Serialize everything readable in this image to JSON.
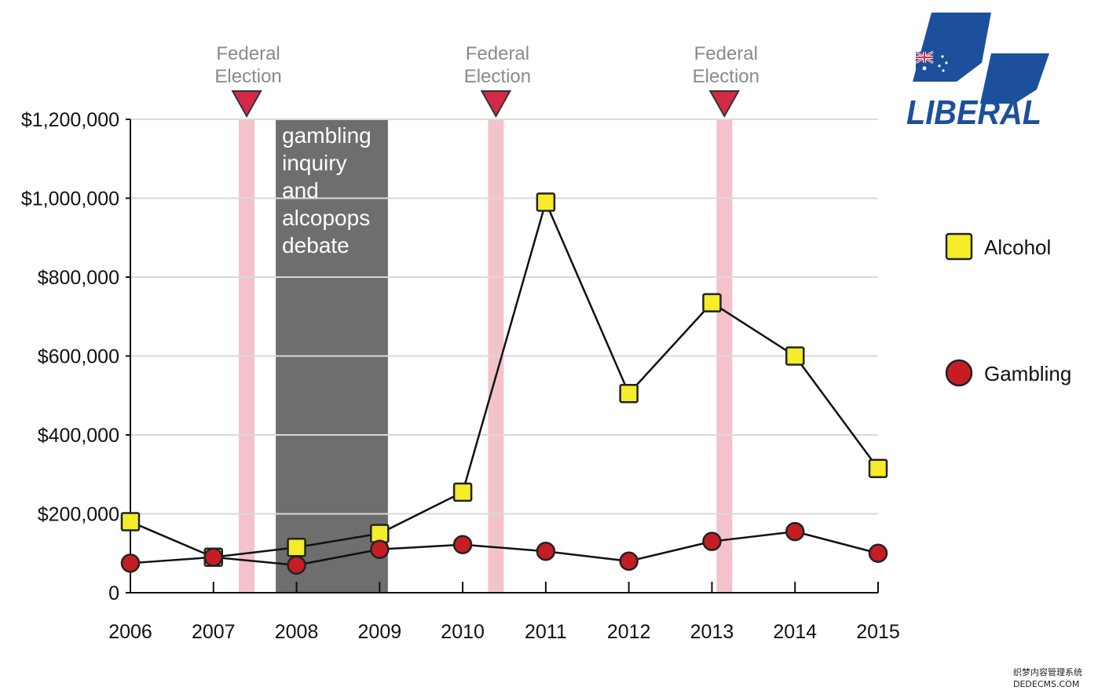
{
  "chart_data": {
    "type": "line",
    "categories": [
      "2006",
      "2007",
      "2008",
      "2009",
      "2010",
      "2011",
      "2012",
      "2013",
      "2014",
      "2015"
    ],
    "ylim": [
      0,
      1200000
    ],
    "y_ticks": [
      {
        "value": 0,
        "label": "0"
      },
      {
        "value": 200000,
        "label": "$200,000"
      },
      {
        "value": 400000,
        "label": "$400,000"
      },
      {
        "value": 600000,
        "label": "$600,000"
      },
      {
        "value": 800000,
        "label": "$800,000"
      },
      {
        "value": 1000000,
        "label": "$1,000,000"
      },
      {
        "value": 1200000,
        "label": "$1,200,000"
      }
    ],
    "grid": true,
    "legend_position": "right",
    "series": [
      {
        "name": "Alcohol",
        "marker": "square",
        "color": "#f5ec2a",
        "values": [
          180000,
          90000,
          115000,
          150000,
          255000,
          990000,
          505000,
          735000,
          600000,
          315000
        ]
      },
      {
        "name": "Gambling",
        "marker": "circle",
        "color": "#c41e24",
        "values": [
          75000,
          90000,
          70000,
          110000,
          122000,
          105000,
          80000,
          130000,
          155000,
          100000
        ]
      }
    ],
    "events": [
      {
        "label_lines": [
          "Federal",
          "Election"
        ],
        "x": 2007.4
      },
      {
        "label_lines": [
          "Federal",
          "Election"
        ],
        "x": 2010.4
      },
      {
        "label_lines": [
          "Federal",
          "Election"
        ],
        "x": 2013.15
      }
    ],
    "period": {
      "x_start": 2007.75,
      "x_end": 2009.1,
      "label_lines": [
        "gambling",
        "inquiry",
        "and",
        "alcopops",
        "debate"
      ]
    }
  },
  "logo": {
    "text": "LIBERAL",
    "brand_color": "#1c4f9c"
  },
  "watermark": {
    "line1": "织梦内容管理系统",
    "line2": "DEDECMS.COM"
  },
  "colors": {
    "event_band": "#f4c2cb",
    "event_marker": "#d42a47",
    "period_band": "#6e6e6e",
    "grid": "#d9d9d9",
    "line": "#111111"
  }
}
